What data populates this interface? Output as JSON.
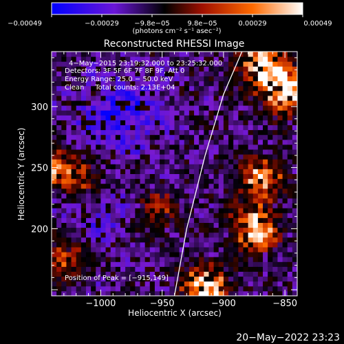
{
  "chart_data": {
    "type": "heatmap",
    "title": "Reconstructed RHESSI Image",
    "xlabel": "Heliocentric X (arcsec)",
    "ylabel": "Heliocentric Y (arcsec)",
    "xlim": [
      -1040,
      -840
    ],
    "ylim": [
      145,
      345
    ],
    "x_ticks": [
      -1000,
      -950,
      -900,
      -850
    ],
    "x_tick_labels": [
      "−1000",
      "−950",
      "−900",
      "−850"
    ],
    "y_ticks": [
      200,
      250,
      300
    ],
    "y_tick_labels": [
      "200",
      "250",
      "300"
    ],
    "colorbar": {
      "range": [
        -0.00049,
        0.00049
      ],
      "tick_labels": [
        "−0.00049",
        "−0.00029",
        "−9.8e−05",
        "9.8e−05",
        "0.00029",
        "0.00049"
      ],
      "unit_label": "(photons cm⁻² s⁻¹ asec⁻²)",
      "colormap": [
        "#0000ff",
        "#7a1ad0",
        "#000000",
        "#a01000",
        "#ff6a00",
        "#ffffff"
      ]
    },
    "info_lines": [
      "4−May−2015 23:19:32.000 to 23:25:32.000",
      "Detectors: 3F 5F 6F 7F 8F 9F, Att 0",
      "Energy Range: 25.0 − 50.0 keV",
      "Clean     Total counts: 2.13E+04"
    ],
    "peak_label": "Position of Peak = [−915,149]",
    "peak": [
      -915,
      149
    ],
    "limb_curve": [
      [
        -940,
        145
      ],
      [
        -930,
        200
      ],
      [
        -915,
        260
      ],
      [
        -900,
        310
      ],
      [
        -885,
        345
      ]
    ],
    "bright_regions": [
      {
        "x": -850,
        "y": 315,
        "intensity": 1.0
      },
      {
        "x": -870,
        "y": 335,
        "intensity": 0.8
      },
      {
        "x": -915,
        "y": 150,
        "intensity": 1.0
      },
      {
        "x": -875,
        "y": 200,
        "intensity": 0.85
      },
      {
        "x": -870,
        "y": 240,
        "intensity": 0.7
      },
      {
        "x": -1035,
        "y": 250,
        "intensity": 0.6
      },
      {
        "x": -1030,
        "y": 175,
        "intensity": 0.5
      },
      {
        "x": -1010,
        "y": 240,
        "intensity": 0.35
      },
      {
        "x": -955,
        "y": 215,
        "intensity": 0.35
      }
    ],
    "dim_regions": [
      {
        "x": -975,
        "y": 300,
        "intensity": 0.9
      },
      {
        "x": -1000,
        "y": 285,
        "intensity": 0.7
      },
      {
        "x": -1000,
        "y": 215,
        "intensity": 0.75
      }
    ],
    "grid": false
  },
  "footer": {
    "timestamp": "20−May−2022 23:23"
  }
}
